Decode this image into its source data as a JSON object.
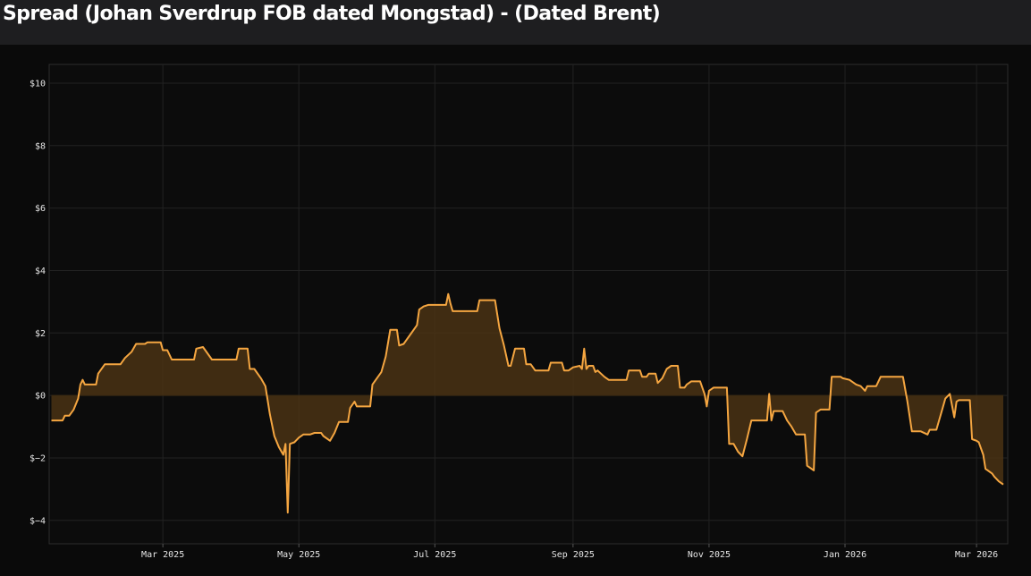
{
  "title": "Spread (Johan Sverdrup FOB dated Mongstad) - (Dated Brent)",
  "colors": {
    "line": "#f5a641",
    "fill": "#4a3214",
    "background": "#0a0a0a",
    "header": "#1e1e20",
    "grid": "#222222",
    "text": "#e6e6e6"
  },
  "chart_data": {
    "type": "area",
    "title": "Spread (Johan Sverdrup FOB dated Mongstad) - (Dated Brent)",
    "xlabel": "",
    "ylabel": "",
    "xlim": [
      "2025-01-09",
      "2026-03-15"
    ],
    "ylim": [
      -4.75,
      10.6
    ],
    "x_tick_labels": [
      {
        "label": "Mar 2025",
        "date": "2025-03-01"
      },
      {
        "label": "May 2025",
        "date": "2025-05-01"
      },
      {
        "label": "Jul 2025",
        "date": "2025-07-01"
      },
      {
        "label": "Sep 2025",
        "date": "2025-09-01"
      },
      {
        "label": "Nov 2025",
        "date": "2025-11-01"
      },
      {
        "label": "Jan 2026",
        "date": "2026-01-01"
      },
      {
        "label": "Mar 2026",
        "date": "2026-03-01"
      }
    ],
    "y_ticks": [
      {
        "label": "$10",
        "value": 10
      },
      {
        "label": "$8",
        "value": 8
      },
      {
        "label": "$6",
        "value": 6
      },
      {
        "label": "$4",
        "value": 4
      },
      {
        "label": "$2",
        "value": 2
      },
      {
        "label": "$0",
        "value": 0
      },
      {
        "label": "$−2",
        "value": -2
      },
      {
        "label": "$−4",
        "value": -4
      }
    ],
    "grid": true,
    "legend": "none",
    "series": [
      {
        "points": [
          [
            "2025-01-10",
            -0.8
          ],
          [
            "2025-01-15",
            -0.8
          ],
          [
            "2025-01-16",
            -0.65
          ],
          [
            "2025-01-18",
            -0.65
          ],
          [
            "2025-01-20",
            -0.45
          ],
          [
            "2025-01-22",
            -0.1
          ],
          [
            "2025-01-23",
            0.35
          ],
          [
            "2025-01-24",
            0.5
          ],
          [
            "2025-01-25",
            0.35
          ],
          [
            "2025-01-30",
            0.35
          ],
          [
            "2025-01-31",
            0.7
          ],
          [
            "2025-02-01",
            0.8
          ],
          [
            "2025-02-03",
            1.0
          ],
          [
            "2025-02-10",
            1.0
          ],
          [
            "2025-02-12",
            1.2
          ],
          [
            "2025-02-15",
            1.4
          ],
          [
            "2025-02-17",
            1.65
          ],
          [
            "2025-02-21",
            1.65
          ],
          [
            "2025-02-22",
            1.7
          ],
          [
            "2025-02-28",
            1.7
          ],
          [
            "2025-03-01",
            1.45
          ],
          [
            "2025-03-03",
            1.45
          ],
          [
            "2025-03-05",
            1.15
          ],
          [
            "2025-03-15",
            1.15
          ],
          [
            "2025-03-16",
            1.5
          ],
          [
            "2025-03-19",
            1.55
          ],
          [
            "2025-03-21",
            1.35
          ],
          [
            "2025-03-23",
            1.15
          ],
          [
            "2025-04-03",
            1.15
          ],
          [
            "2025-04-04",
            1.5
          ],
          [
            "2025-04-08",
            1.5
          ],
          [
            "2025-04-09",
            0.85
          ],
          [
            "2025-04-11",
            0.85
          ],
          [
            "2025-04-14",
            0.55
          ],
          [
            "2025-04-16",
            0.3
          ],
          [
            "2025-04-18",
            -0.6
          ],
          [
            "2025-04-20",
            -1.3
          ],
          [
            "2025-04-22",
            -1.65
          ],
          [
            "2025-04-24",
            -1.9
          ],
          [
            "2025-04-25",
            -1.55
          ],
          [
            "2025-04-26",
            -3.75
          ],
          [
            "2025-04-27",
            -1.55
          ],
          [
            "2025-04-29",
            -1.5
          ],
          [
            "2025-05-01",
            -1.35
          ],
          [
            "2025-05-03",
            -1.25
          ],
          [
            "2025-05-06",
            -1.25
          ],
          [
            "2025-05-08",
            -1.2
          ],
          [
            "2025-05-11",
            -1.2
          ],
          [
            "2025-05-12",
            -1.3
          ],
          [
            "2025-05-15",
            -1.45
          ],
          [
            "2025-05-17",
            -1.2
          ],
          [
            "2025-05-19",
            -0.85
          ],
          [
            "2025-05-23",
            -0.85
          ],
          [
            "2025-05-24",
            -0.4
          ],
          [
            "2025-05-26",
            -0.2
          ],
          [
            "2025-05-27",
            -0.35
          ],
          [
            "2025-06-02",
            -0.35
          ],
          [
            "2025-06-03",
            0.35
          ],
          [
            "2025-06-05",
            0.55
          ],
          [
            "2025-06-07",
            0.75
          ],
          [
            "2025-06-09",
            1.25
          ],
          [
            "2025-06-11",
            2.1
          ],
          [
            "2025-06-14",
            2.1
          ],
          [
            "2025-06-15",
            1.6
          ],
          [
            "2025-06-17",
            1.65
          ],
          [
            "2025-06-20",
            1.95
          ],
          [
            "2025-06-23",
            2.25
          ],
          [
            "2025-06-24",
            2.75
          ],
          [
            "2025-06-26",
            2.85
          ],
          [
            "2025-06-28",
            2.9
          ],
          [
            "2025-07-06",
            2.9
          ],
          [
            "2025-07-07",
            3.25
          ],
          [
            "2025-07-08",
            2.95
          ],
          [
            "2025-07-09",
            2.7
          ],
          [
            "2025-07-20",
            2.7
          ],
          [
            "2025-07-21",
            3.05
          ],
          [
            "2025-07-28",
            3.05
          ],
          [
            "2025-07-30",
            2.15
          ],
          [
            "2025-08-01",
            1.6
          ],
          [
            "2025-08-03",
            0.95
          ],
          [
            "2025-08-04",
            0.95
          ],
          [
            "2025-08-06",
            1.5
          ],
          [
            "2025-08-10",
            1.5
          ],
          [
            "2025-08-11",
            1.0
          ],
          [
            "2025-08-13",
            1.0
          ],
          [
            "2025-08-15",
            0.8
          ],
          [
            "2025-08-21",
            0.8
          ],
          [
            "2025-08-22",
            1.05
          ],
          [
            "2025-08-27",
            1.05
          ],
          [
            "2025-08-28",
            0.8
          ],
          [
            "2025-08-30",
            0.8
          ],
          [
            "2025-09-01",
            0.9
          ],
          [
            "2025-09-04",
            0.95
          ],
          [
            "2025-09-05",
            0.85
          ],
          [
            "2025-09-06",
            1.5
          ],
          [
            "2025-09-07",
            0.85
          ],
          [
            "2025-09-08",
            0.95
          ],
          [
            "2025-09-10",
            0.95
          ],
          [
            "2025-09-11",
            0.75
          ],
          [
            "2025-09-12",
            0.8
          ],
          [
            "2025-09-15",
            0.6
          ],
          [
            "2025-09-17",
            0.5
          ],
          [
            "2025-09-25",
            0.5
          ],
          [
            "2025-09-26",
            0.8
          ],
          [
            "2025-10-01",
            0.8
          ],
          [
            "2025-10-02",
            0.6
          ],
          [
            "2025-10-04",
            0.6
          ],
          [
            "2025-10-05",
            0.7
          ],
          [
            "2025-10-08",
            0.7
          ],
          [
            "2025-10-09",
            0.4
          ],
          [
            "2025-10-11",
            0.55
          ],
          [
            "2025-10-13",
            0.85
          ],
          [
            "2025-10-15",
            0.95
          ],
          [
            "2025-10-18",
            0.95
          ],
          [
            "2025-10-19",
            0.25
          ],
          [
            "2025-10-21",
            0.25
          ],
          [
            "2025-10-22",
            0.35
          ],
          [
            "2025-10-24",
            0.45
          ],
          [
            "2025-10-28",
            0.45
          ],
          [
            "2025-10-30",
            0.05
          ],
          [
            "2025-10-31",
            -0.35
          ],
          [
            "2025-11-01",
            0.15
          ],
          [
            "2025-11-03",
            0.25
          ],
          [
            "2025-11-09",
            0.25
          ],
          [
            "2025-11-10",
            -1.55
          ],
          [
            "2025-11-12",
            -1.55
          ],
          [
            "2025-11-14",
            -1.8
          ],
          [
            "2025-11-16",
            -1.95
          ],
          [
            "2025-11-18",
            -1.4
          ],
          [
            "2025-11-20",
            -0.8
          ],
          [
            "2025-11-27",
            -0.8
          ],
          [
            "2025-11-28",
            0.05
          ],
          [
            "2025-11-29",
            -0.8
          ],
          [
            "2025-11-30",
            -0.5
          ],
          [
            "2025-12-04",
            -0.5
          ],
          [
            "2025-12-06",
            -0.8
          ],
          [
            "2025-12-08",
            -1.0
          ],
          [
            "2025-12-10",
            -1.25
          ],
          [
            "2025-12-14",
            -1.25
          ],
          [
            "2025-12-15",
            -2.25
          ],
          [
            "2025-12-17",
            -2.35
          ],
          [
            "2025-12-18",
            -2.4
          ],
          [
            "2025-12-19",
            -0.55
          ],
          [
            "2025-12-21",
            -0.45
          ],
          [
            "2025-12-22",
            -0.45
          ],
          [
            "2025-12-25",
            -0.45
          ],
          [
            "2025-12-26",
            0.6
          ],
          [
            "2025-12-30",
            0.6
          ],
          [
            "2025-12-31",
            0.55
          ],
          [
            "2026-01-03",
            0.5
          ],
          [
            "2026-01-06",
            0.35
          ],
          [
            "2026-01-08",
            0.3
          ],
          [
            "2026-01-10",
            0.15
          ],
          [
            "2026-01-11",
            0.3
          ],
          [
            "2026-01-15",
            0.3
          ],
          [
            "2026-01-17",
            0.6
          ],
          [
            "2026-01-27",
            0.6
          ],
          [
            "2026-01-29",
            -0.2
          ],
          [
            "2026-01-31",
            -1.15
          ],
          [
            "2026-02-04",
            -1.15
          ],
          [
            "2026-02-07",
            -1.25
          ],
          [
            "2026-02-08",
            -1.1
          ],
          [
            "2026-02-11",
            -1.1
          ],
          [
            "2026-02-13",
            -0.6
          ],
          [
            "2026-02-15",
            -0.1
          ],
          [
            "2026-02-17",
            0.05
          ],
          [
            "2026-02-19",
            -0.7
          ],
          [
            "2026-02-20",
            -0.2
          ],
          [
            "2026-02-21",
            -0.15
          ],
          [
            "2026-02-26",
            -0.15
          ],
          [
            "2026-02-27",
            -1.4
          ],
          [
            "2026-03-01",
            -1.45
          ],
          [
            "2026-03-02",
            -1.5
          ],
          [
            "2026-03-04",
            -1.9
          ],
          [
            "2026-03-05",
            -2.35
          ],
          [
            "2026-03-06",
            -2.4
          ],
          [
            "2026-03-08",
            -2.5
          ],
          [
            "2026-03-09",
            -2.6
          ],
          [
            "2026-03-11",
            -2.75
          ],
          [
            "2026-03-13",
            -2.85
          ]
        ]
      }
    ]
  }
}
